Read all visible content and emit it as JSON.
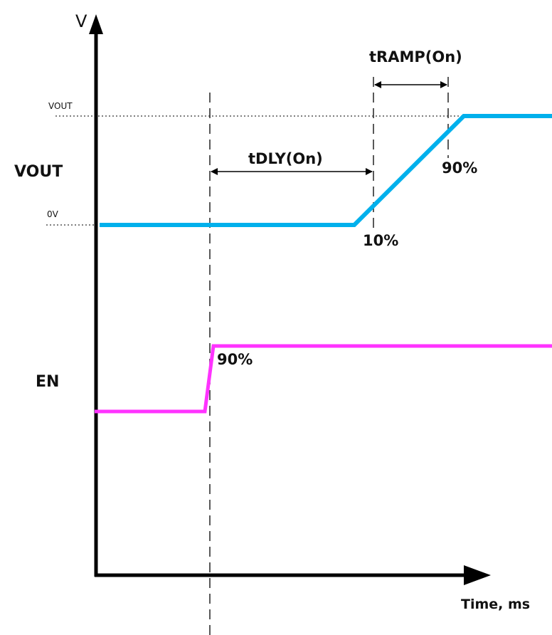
{
  "axes": {
    "y_label": "V",
    "x_label": "Time, ms"
  },
  "levels": {
    "vout_level": "VOUT",
    "zero_level": "0V"
  },
  "signals": [
    {
      "name": "VOUT",
      "color": "#00b0ec"
    },
    {
      "name": "EN",
      "color": "#ff33ff"
    }
  ],
  "annotations": {
    "tdly": "tDLY(On)",
    "tramp": "tRAMP(On)",
    "vout_10": "10%",
    "vout_90": "90%",
    "en_90": "90%"
  }
}
